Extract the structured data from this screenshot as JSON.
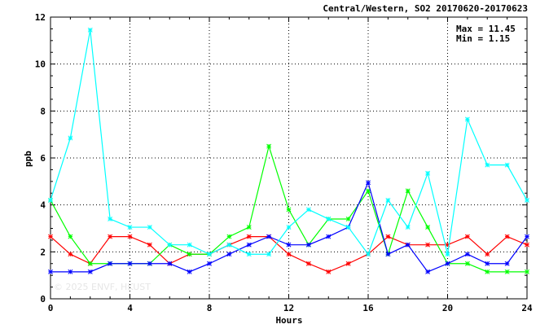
{
  "chart_data": {
    "type": "line",
    "title": "Central/Western, SO2 20170620-20170623",
    "xlabel": "Hours",
    "ylabel": "ppb",
    "xlim": [
      0,
      24
    ],
    "ylim": [
      0,
      12
    ],
    "xticks": [
      0,
      4,
      8,
      12,
      16,
      20,
      24
    ],
    "yticks": [
      0,
      2,
      4,
      6,
      8,
      10,
      12
    ],
    "grid": true,
    "stats": {
      "max_label": "Max = 11.45",
      "min_label": "Min =  1.15"
    },
    "watermark": "© 2025  ENVF, HKUST",
    "x": [
      0,
      1,
      2,
      3,
      4,
      5,
      6,
      7,
      8,
      9,
      10,
      11,
      12,
      13,
      14,
      15,
      16,
      17,
      18,
      19,
      20,
      21,
      22,
      23,
      24
    ],
    "series": [
      {
        "color": "#ff0000",
        "values": [
          2.65,
          1.9,
          1.5,
          2.65,
          2.65,
          2.3,
          1.5,
          1.9,
          1.9,
          2.3,
          2.65,
          2.65,
          1.9,
          1.5,
          1.15,
          1.5,
          1.9,
          2.65,
          2.3,
          2.3,
          2.3,
          2.65,
          1.9,
          2.65,
          2.3
        ]
      },
      {
        "color": "#00ff00",
        "values": [
          4.2,
          2.65,
          1.5,
          1.5,
          1.5,
          1.5,
          2.3,
          1.9,
          1.9,
          2.65,
          3.05,
          6.5,
          3.8,
          2.3,
          3.4,
          3.4,
          4.6,
          1.9,
          4.6,
          3.05,
          1.5,
          1.5,
          1.15,
          1.15,
          1.15
        ]
      },
      {
        "color": "#0000ff",
        "values": [
          1.15,
          1.15,
          1.15,
          1.5,
          1.5,
          1.5,
          1.5,
          1.15,
          1.5,
          1.9,
          2.3,
          2.65,
          2.3,
          2.3,
          2.65,
          3.05,
          4.95,
          1.9,
          2.3,
          1.15,
          1.5,
          1.9,
          1.5,
          1.5,
          2.65
        ]
      },
      {
        "color": "#00ffff",
        "values": [
          4.2,
          6.85,
          11.45,
          3.4,
          3.05,
          3.05,
          2.3,
          2.3,
          1.9,
          2.3,
          1.9,
          1.9,
          3.05,
          3.8,
          3.4,
          3.05,
          1.9,
          4.2,
          3.05,
          5.35,
          1.9,
          7.65,
          5.7,
          5.7,
          4.2
        ]
      }
    ]
  }
}
